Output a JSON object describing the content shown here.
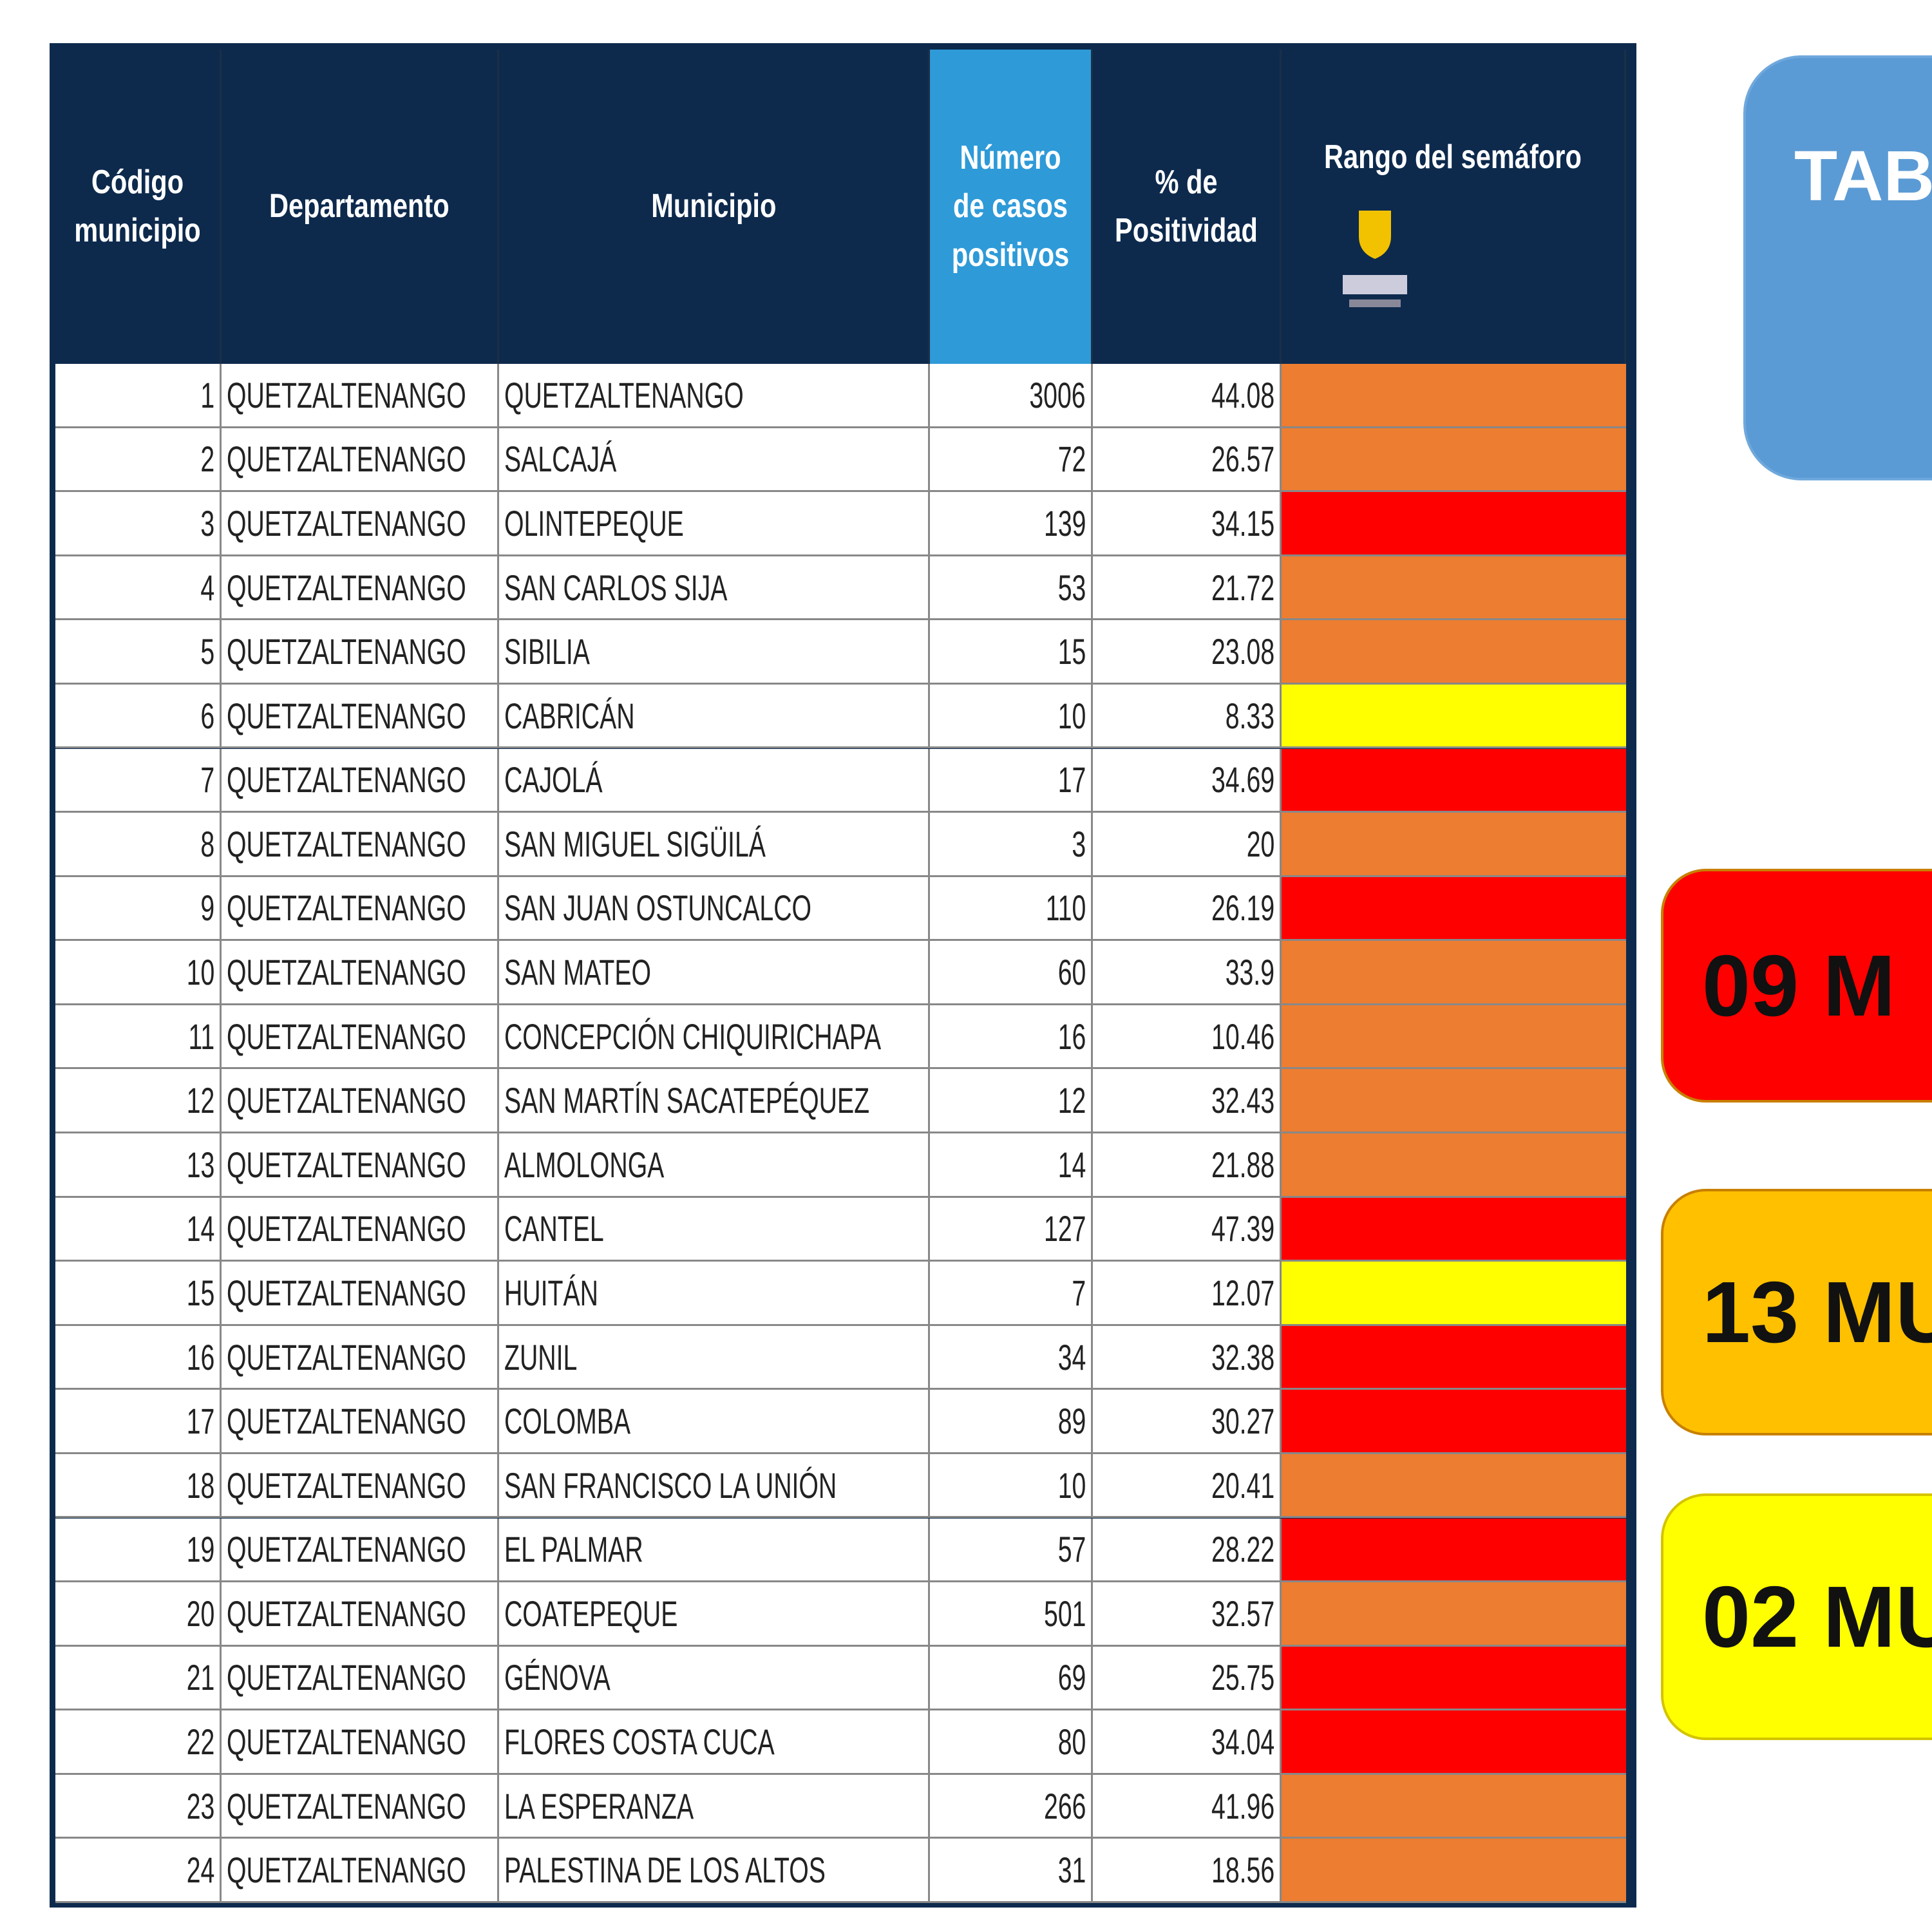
{
  "table": {
    "header": [
      "Código municipio",
      "Departamento",
      "Municipio",
      "Número de casos positivos",
      "% de Positividad",
      "Rango del semáforo"
    ],
    "rows": [
      {
        "cells": [
          "1",
          "QUETZALTENANGO",
          "QUETZALTENANGO",
          "3006",
          "44.08"
        ],
        "color": "#ed7d31"
      },
      {
        "cells": [
          "2",
          "QUETZALTENANGO",
          "SALCAJÁ",
          "72",
          "26.57"
        ],
        "color": "#ed7d31"
      },
      {
        "cells": [
          "3",
          "QUETZALTENANGO",
          "OLINTEPEQUE",
          "139",
          "34.15"
        ],
        "color": "#ff0000"
      },
      {
        "cells": [
          "4",
          "QUETZALTENANGO",
          "SAN CARLOS SIJA",
          "53",
          "21.72"
        ],
        "color": "#ed7d31"
      },
      {
        "cells": [
          "5",
          "QUETZALTENANGO",
          "SIBILIA",
          "15",
          "23.08"
        ],
        "color": "#ed7d31"
      },
      {
        "cells": [
          "6",
          "QUETZALTENANGO",
          "CABRICÁN",
          "10",
          "8.33"
        ],
        "color": "#ffff00"
      },
      {
        "cells": [
          "7",
          "QUETZALTENANGO",
          "CAJOLÁ",
          "17",
          "34.69"
        ],
        "color": "#ff0000"
      },
      {
        "cells": [
          "8",
          "QUETZALTENANGO",
          "SAN MIGUEL SIGÜILÁ",
          "3",
          "20"
        ],
        "color": "#ed7d31"
      },
      {
        "cells": [
          "9",
          "QUETZALTENANGO",
          "SAN JUAN OSTUNCALCO",
          "110",
          "26.19"
        ],
        "color": "#ff0000"
      },
      {
        "cells": [
          "10",
          "QUETZALTENANGO",
          "SAN MATEO",
          "60",
          "33.9"
        ],
        "color": "#ed7d31"
      },
      {
        "cells": [
          "11",
          "QUETZALTENANGO",
          "CONCEPCIÓN CHIQUIRICHAPA",
          "16",
          "10.46"
        ],
        "color": "#ed7d31"
      },
      {
        "cells": [
          "12",
          "QUETZALTENANGO",
          "SAN MARTÍN SACATEPÉQUEZ",
          "12",
          "32.43"
        ],
        "color": "#ed7d31"
      },
      {
        "cells": [
          "13",
          "QUETZALTENANGO",
          "ALMOLONGA",
          "14",
          "21.88"
        ],
        "color": "#ed7d31"
      },
      {
        "cells": [
          "14",
          "QUETZALTENANGO",
          "CANTEL",
          "127",
          "47.39"
        ],
        "color": "#ff0000"
      },
      {
        "cells": [
          "15",
          "QUETZALTENANGO",
          "HUITÁN",
          "7",
          "12.07"
        ],
        "color": "#ffff00"
      },
      {
        "cells": [
          "16",
          "QUETZALTENANGO",
          "ZUNIL",
          "34",
          "32.38"
        ],
        "color": "#ff0000"
      },
      {
        "cells": [
          "17",
          "QUETZALTENANGO",
          "COLOMBA",
          "89",
          "30.27"
        ],
        "color": "#ff0000"
      },
      {
        "cells": [
          "18",
          "QUETZALTENANGO",
          "SAN FRANCISCO LA UNIÓN",
          "10",
          "20.41"
        ],
        "color": "#ed7d31"
      },
      {
        "cells": [
          "19",
          "QUETZALTENANGO",
          "EL PALMAR",
          "57",
          "28.22"
        ],
        "color": "#ff0000"
      },
      {
        "cells": [
          "20",
          "QUETZALTENANGO",
          "COATEPEQUE",
          "501",
          "32.57"
        ],
        "color": "#ed7d31"
      },
      {
        "cells": [
          "21",
          "QUETZALTENANGO",
          "GÉNOVA",
          "69",
          "25.75"
        ],
        "color": "#ff0000"
      },
      {
        "cells": [
          "22",
          "QUETZALTENANGO",
          "FLORES COSTA CUCA",
          "80",
          "34.04"
        ],
        "color": "#ff0000"
      },
      {
        "cells": [
          "23",
          "QUETZALTENANGO",
          "LA ESPERANZA",
          "266",
          "41.96"
        ],
        "color": "#ed7d31"
      },
      {
        "cells": [
          "24",
          "QUETZALTENANGO",
          "PALESTINA DE LOS ALTOS",
          "31",
          "18.56"
        ],
        "color": "#ed7d31"
      }
    ]
  },
  "side": {
    "title": "TAB",
    "panels": [
      {
        "label": "09 M",
        "color": "#ff0000"
      },
      {
        "label": "13 MU",
        "color": "#ffc000"
      },
      {
        "label": "02 MU",
        "color": "#ffff00"
      }
    ]
  }
}
